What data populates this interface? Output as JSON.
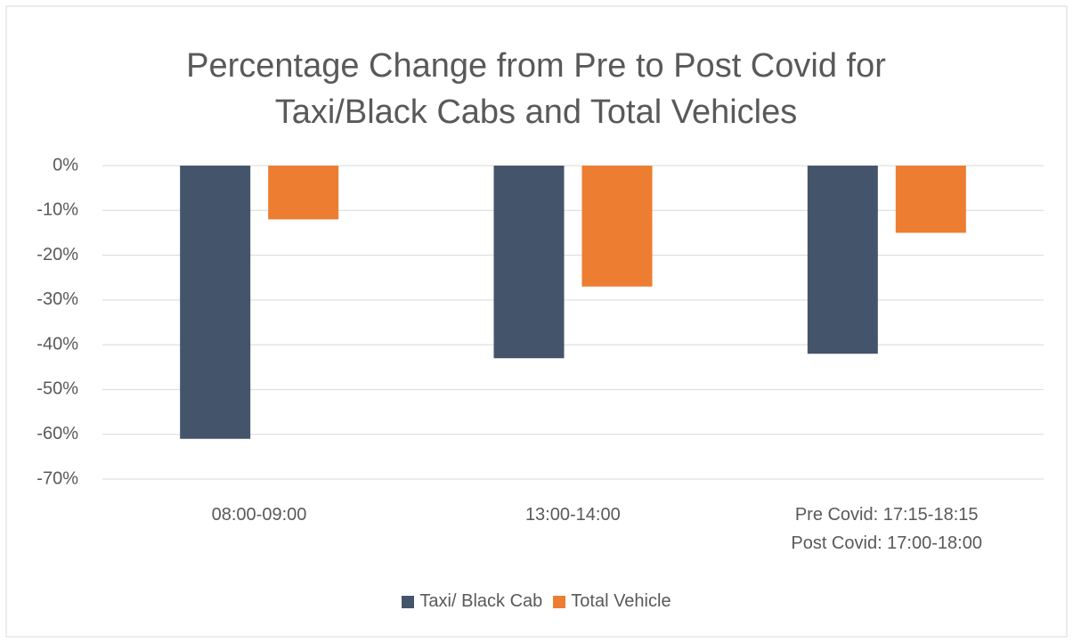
{
  "chart_data": {
    "type": "bar",
    "title": "Percentage Change from Pre to Post Covid for Taxi/Black Cabs and Total Vehicles",
    "categories": [
      "08:00-09:00",
      "13:00-14:00",
      "Pre Covid: 17:15-18:15\nPost Covid: 17:00-18:00"
    ],
    "series": [
      {
        "name": "Taxi/ Black Cab",
        "color": "#44546a",
        "values": [
          -61,
          -43,
          -42
        ]
      },
      {
        "name": "Total Vehicle",
        "color": "#ed7d31",
        "values": [
          -12,
          -27,
          -15
        ]
      }
    ],
    "ylim": [
      -70,
      0
    ],
    "yticks": [
      {
        "value": 0,
        "label": "0%"
      },
      {
        "value": -10,
        "label": "-10%"
      },
      {
        "value": -20,
        "label": "-20%"
      },
      {
        "value": -30,
        "label": "-30%"
      },
      {
        "value": -40,
        "label": "-40%"
      },
      {
        "value": -50,
        "label": "-50%"
      },
      {
        "value": -60,
        "label": "-60%"
      },
      {
        "value": -70,
        "label": "-70%"
      }
    ],
    "grid": true,
    "legend": "bottom"
  }
}
